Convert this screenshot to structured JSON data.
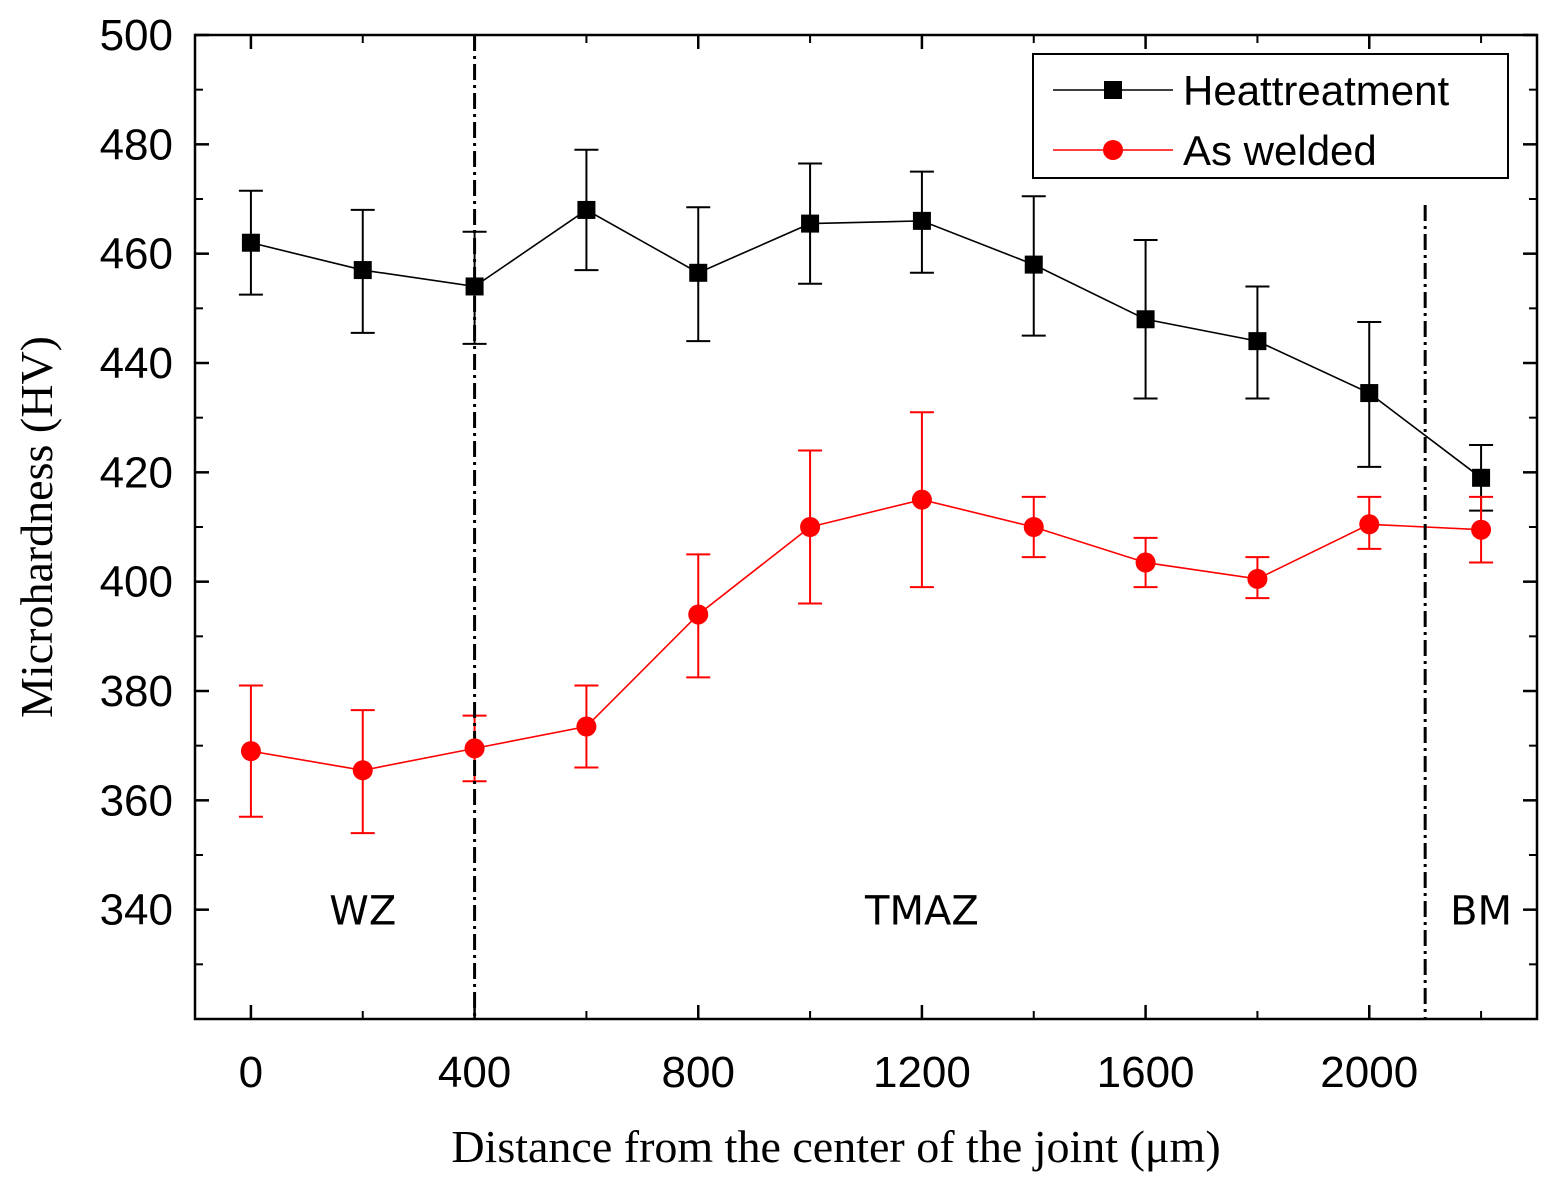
{
  "chart_data": {
    "type": "line",
    "title": "",
    "xlabel": "Distance from the center of the joint (μm)",
    "ylabel": "Microhardness (HV)",
    "xlim": [
      -100,
      2300
    ],
    "ylim": [
      320,
      500
    ],
    "xticks": [
      0,
      400,
      800,
      1200,
      1600,
      2000
    ],
    "xtick_labels": [
      "0",
      "400",
      "800",
      "1200",
      "1600",
      "2000"
    ],
    "yticks": [
      340,
      360,
      380,
      400,
      420,
      440,
      460,
      480,
      500
    ],
    "ytick_labels": [
      "340",
      "360",
      "380",
      "400",
      "420",
      "440",
      "460",
      "480",
      "500"
    ],
    "grid": false,
    "legend_position": "top-right",
    "x": [
      0,
      200,
      400,
      600,
      800,
      1000,
      1200,
      1400,
      1600,
      1800,
      2000,
      2200
    ],
    "series": [
      {
        "name": "Heattreatment",
        "marker": "square",
        "color": "#000000",
        "values": [
          462,
          457,
          454,
          468,
          456.5,
          465.5,
          466,
          458,
          448,
          444,
          434.5,
          419
        ],
        "err_low": [
          452.5,
          445.5,
          443.5,
          457,
          444,
          454.5,
          456.5,
          445,
          433.5,
          433.5,
          421,
          413
        ],
        "err_high": [
          471.5,
          468,
          464,
          479,
          468.5,
          476.5,
          475,
          470.5,
          462.5,
          454,
          447.5,
          425
        ]
      },
      {
        "name": "As welded",
        "marker": "circle",
        "color": "#ff0000",
        "values": [
          369,
          365.5,
          369.5,
          373.5,
          394,
          410,
          415,
          410,
          403.5,
          400.5,
          410.5,
          409.5
        ],
        "err_low": [
          357,
          354,
          363.5,
          366,
          382.5,
          396,
          399,
          404.5,
          399,
          397,
          406,
          403.5
        ],
        "err_high": [
          381,
          376.5,
          375.5,
          381,
          405,
          424,
          431,
          415.5,
          408,
          404.5,
          415.5,
          415.5
        ]
      }
    ],
    "vlines": [
      400,
      2100
    ],
    "annotations": [
      {
        "text": "WZ",
        "x": 200,
        "y": 340
      },
      {
        "text": "TMAZ",
        "x": 1200,
        "y": 340
      },
      {
        "text": "BM",
        "x": 2200,
        "y": 340
      }
    ]
  }
}
